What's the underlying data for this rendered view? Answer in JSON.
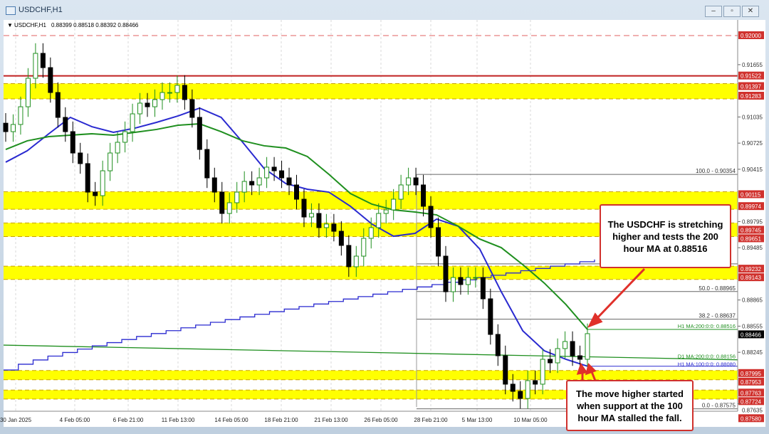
{
  "window": {
    "title": "USDCHF,H1",
    "buttons": [
      "minimize",
      "restore",
      "close"
    ]
  },
  "header": {
    "symbol": "USDCHF,H1",
    "ohlc": "0.88399 0.88518 0.88392 0.88466"
  },
  "chart_data": {
    "type": "candlestick",
    "title": "USDCHF,H1",
    "ylim": [
      0.8758,
      0.92
    ],
    "grid": true,
    "x_tick_labels": [
      "30 Jan 2025",
      "4 Feb 05:00",
      "6 Feb 21:00",
      "11 Feb 13:00",
      "14 Feb 05:00",
      "18 Feb 21:00",
      "21 Feb 13:00",
      "26 Feb 05:00",
      "28 Feb 21:00",
      "5 Mar 13:00",
      "10 Mar 05:00"
    ],
    "y_tick_labels": [
      "0.91655",
      "0.91035",
      "0.90725",
      "0.90415",
      "0.89795",
      "0.89485",
      "0.88865",
      "0.88555",
      "0.88245",
      "0.87635"
    ],
    "closes": [
      0.90861,
      0.90946,
      0.91156,
      0.91494,
      0.91789,
      0.9162,
      0.91325,
      0.9103,
      0.90861,
      0.90608,
      0.90482,
      0.90144,
      0.90102,
      0.90397,
      0.90608,
      0.90735,
      0.90861,
      0.91072,
      0.91199,
      0.91156,
      0.91241,
      0.91325,
      0.91325,
      0.9141,
      0.91241,
      0.9103,
      0.9065,
      0.90313,
      0.90144,
      0.89891,
      0.90018,
      0.90144,
      0.90271,
      0.90229,
      0.90313,
      0.9044,
      0.90397,
      0.90313,
      0.90229,
      0.9006,
      0.89849,
      0.89891,
      0.89723,
      0.89765,
      0.8968,
      0.89512,
      0.89259,
      0.89385,
      0.89596,
      0.89723,
      0.89891,
      0.89933,
      0.9006,
      0.90229,
      0.90313,
      0.90229,
      0.89976,
      0.89723,
      0.89385,
      0.88963,
      0.89132,
      0.89048,
      0.89132,
      0.89132,
      0.88879,
      0.88457,
      0.88204,
      0.87867,
      0.87782,
      0.87698,
      0.87909,
      0.87867,
      0.88162,
      0.8812,
      0.88289,
      0.88373,
      0.88204,
      0.88162,
      0.88466
    ],
    "series": [
      {
        "name": "H1 MA:100:0:0",
        "color": "#2a2ad0",
        "values": [
          0.90499,
          0.90634,
          0.90836,
          0.9103,
          0.9092,
          0.90853,
          0.90903,
          0.90971,
          0.91047,
          0.9114,
          0.9103,
          0.90735,
          0.90423,
          0.90246,
          0.90178,
          0.90144,
          0.89976,
          0.89765,
          0.89621,
          0.89655,
          0.89824,
          0.8974,
          0.8947,
          0.88963,
          0.88499,
          0.88263,
          0.88162,
          0.8808
        ]
      },
      {
        "name": "H1 MA:200:0:0",
        "color": "#1f8f1f",
        "values": [
          0.9065,
          0.90752,
          0.90802,
          0.90819,
          0.90836,
          0.90819,
          0.90853,
          0.90887,
          0.90937,
          0.90954,
          0.90861,
          0.90752,
          0.90693,
          0.90667,
          0.90566,
          0.90355,
          0.90127,
          0.90001,
          0.89933,
          0.89908,
          0.89874,
          0.8974,
          0.89588,
          0.89486,
          0.89284,
          0.89065,
          0.88812,
          0.88516
        ]
      },
      {
        "name": "D1 MA:200:0:0",
        "color": "#1f8f1f",
        "values": [
          0.8833,
          0.88156
        ]
      },
      {
        "color": "#2a2ad0",
        "values": [
          0.88035,
          0.89345
        ]
      }
    ],
    "ma_labels": [
      {
        "text": "H1 MA:200:0:0: 0.88516",
        "value": 0.88516,
        "color": "#1f8f1f"
      },
      {
        "text": "D1 MA:200:0:0: 0.88156",
        "value": 0.88156,
        "color": "#1f8f1f"
      },
      {
        "text": "H1 MA:100:0:0: 0.88080",
        "value": 0.8808,
        "color": "#2a2ad0"
      }
    ],
    "fib_levels": [
      {
        "text": "100.0 - 0.90354",
        "value": 0.90354
      },
      {
        "text": "",
        "value": 0.89293
      },
      {
        "text": "50.0 - 0.88965",
        "value": 0.88965
      },
      {
        "text": "38.2 - 0.88637",
        "value": 0.88637
      },
      {
        "text": "0.0 - 0.87575",
        "value": 0.87575
      }
    ],
    "zones": [
      [
        0.91397,
        0.91283
      ],
      [
        0.90115,
        0.89974
      ],
      [
        0.89745,
        0.89651
      ],
      [
        0.89232,
        0.89143
      ],
      [
        0.87995,
        0.87953
      ],
      [
        0.87763,
        0.87724
      ]
    ],
    "red_labels": [
      "0.92000",
      "0.91522",
      "0.91397",
      "0.91283",
      "0.90115",
      "0.89974",
      "0.89745",
      "0.89651",
      "0.89232",
      "0.89143",
      "0.87995",
      "0.87953",
      "0.87763",
      "0.87724",
      "0.87580"
    ],
    "dashed_line": 0.92,
    "solid_line": 0.91522,
    "current_price": "0.88466",
    "colors": {
      "zone": "#ffff00",
      "level": "#d0312d",
      "bull": "#1f8f1f",
      "bear": "#000000"
    }
  },
  "annotations": {
    "top": "The USDCHF is stretching higher and tests the 200 hour MA at 0.88516",
    "bottom": "The move higher started when support at the 100 hour MA stalled the fall."
  }
}
